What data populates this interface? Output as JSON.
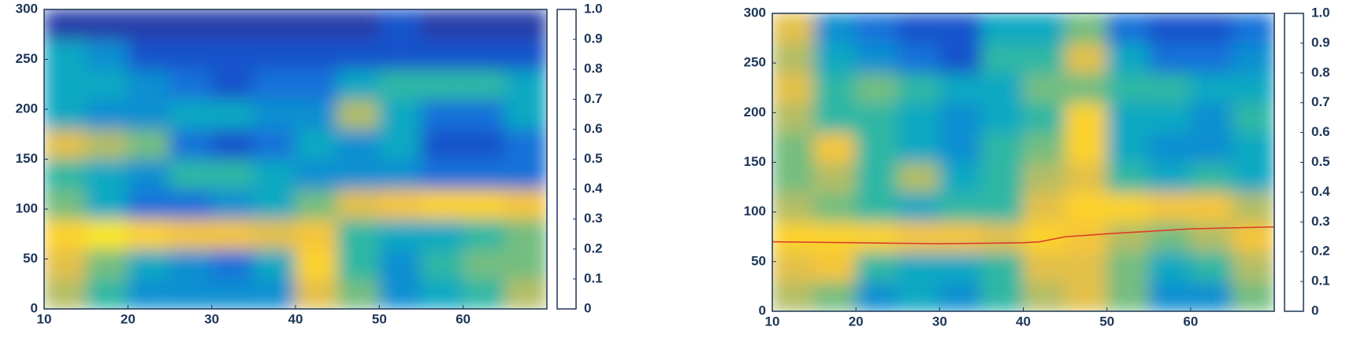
{
  "chart_data": [
    {
      "type": "heatmap",
      "xlim": [
        10,
        70
      ],
      "xticks": [
        10,
        20,
        30,
        40,
        50,
        60
      ],
      "ylim": [
        0,
        300
      ],
      "yticks": [
        0,
        50,
        100,
        150,
        200,
        250,
        300
      ],
      "clim": [
        0,
        1
      ],
      "cticks": [
        0,
        0.1,
        0.2,
        0.3,
        0.4,
        0.5,
        0.6,
        0.7,
        0.8,
        0.9,
        {
          "value": 1,
          "label": "1.0"
        }
      ],
      "colormap": [
        "#352a87",
        "#0f5cdd",
        "#1481d6",
        "#06a4ca",
        "#2eb7a4",
        "#87bf77",
        "#d1bb59",
        "#fec832",
        "#f9fb0e"
      ],
      "z": [
        [
          0.7,
          0.5,
          0.3,
          0.3,
          0.3,
          0.3,
          0.8,
          0.6,
          0.3,
          0.4,
          0.5,
          0.7
        ],
        [
          0.8,
          0.6,
          0.4,
          0.3,
          0.2,
          0.4,
          0.9,
          0.5,
          0.3,
          0.5,
          0.6,
          0.6
        ],
        [
          0.9,
          0.95,
          0.9,
          0.85,
          0.85,
          0.8,
          0.85,
          0.5,
          0.4,
          0.4,
          0.5,
          0.6
        ],
        [
          0.6,
          0.4,
          0.2,
          0.2,
          0.3,
          0.4,
          0.6,
          0.8,
          0.85,
          0.9,
          0.9,
          0.85
        ],
        [
          0.5,
          0.4,
          0.3,
          0.5,
          0.5,
          0.4,
          0.3,
          0.3,
          0.3,
          0.2,
          0.2,
          0.2
        ],
        [
          0.8,
          0.7,
          0.6,
          0.2,
          0.1,
          0.2,
          0.4,
          0.3,
          0.4,
          0.1,
          0.1,
          0.2
        ],
        [
          0.4,
          0.3,
          0.3,
          0.4,
          0.4,
          0.3,
          0.3,
          0.7,
          0.4,
          0.2,
          0.2,
          0.4
        ],
        [
          0.4,
          0.4,
          0.3,
          0.2,
          0.1,
          0.2,
          0.2,
          0.4,
          0.5,
          0.5,
          0.5,
          0.4
        ],
        [
          0.4,
          0.3,
          0.1,
          0.1,
          0.1,
          0.1,
          0.1,
          0.1,
          0.1,
          0.1,
          0.1,
          0.1
        ],
        [
          0.05,
          0.05,
          0.05,
          0.05,
          0.05,
          0.05,
          0.05,
          0.05,
          0.1,
          0.05,
          0.05,
          0.05
        ]
      ]
    },
    {
      "type": "heatmap",
      "xlim": [
        10,
        70
      ],
      "xticks": [
        10,
        20,
        30,
        40,
        50,
        60
      ],
      "ylim": [
        0,
        300
      ],
      "yticks": [
        0,
        50,
        100,
        150,
        200,
        250,
        300
      ],
      "clim": [
        0,
        1
      ],
      "cticks": [
        0,
        0.1,
        0.2,
        0.3,
        0.4,
        0.5,
        0.6,
        0.7,
        0.8,
        0.9,
        {
          "value": 1,
          "label": "1.0"
        }
      ],
      "colormap": [
        "#352a87",
        "#0f5cdd",
        "#1481d6",
        "#06a4ca",
        "#2eb7a4",
        "#87bf77",
        "#d1bb59",
        "#fec832",
        "#f9fb0e"
      ],
      "z": [
        [
          0.7,
          0.6,
          0.3,
          0.4,
          0.3,
          0.5,
          0.7,
          0.8,
          0.6,
          0.3,
          0.3,
          0.6
        ],
        [
          0.8,
          0.85,
          0.5,
          0.4,
          0.4,
          0.5,
          0.8,
          0.8,
          0.6,
          0.4,
          0.5,
          0.7
        ],
        [
          0.9,
          0.9,
          0.9,
          0.85,
          0.85,
          0.8,
          0.9,
          0.85,
          0.7,
          0.6,
          0.7,
          0.85
        ],
        [
          0.7,
          0.6,
          0.5,
          0.4,
          0.5,
          0.5,
          0.8,
          0.9,
          0.9,
          0.85,
          0.85,
          0.7
        ],
        [
          0.6,
          0.7,
          0.5,
          0.7,
          0.4,
          0.5,
          0.7,
          0.8,
          0.5,
          0.4,
          0.5,
          0.4
        ],
        [
          0.6,
          0.85,
          0.5,
          0.4,
          0.3,
          0.5,
          0.6,
          0.9,
          0.4,
          0.3,
          0.3,
          0.4
        ],
        [
          0.7,
          0.5,
          0.5,
          0.4,
          0.3,
          0.4,
          0.5,
          0.9,
          0.4,
          0.4,
          0.3,
          0.5
        ],
        [
          0.8,
          0.5,
          0.6,
          0.5,
          0.4,
          0.4,
          0.6,
          0.6,
          0.5,
          0.5,
          0.4,
          0.4
        ],
        [
          0.7,
          0.4,
          0.3,
          0.2,
          0.1,
          0.5,
          0.5,
          0.8,
          0.4,
          0.2,
          0.2,
          0.3
        ],
        [
          0.8,
          0.3,
          0.2,
          0.1,
          0.1,
          0.4,
          0.4,
          0.6,
          0.2,
          0.1,
          0.1,
          0.2
        ]
      ],
      "line": {
        "color": "#d9402a",
        "x": [
          10,
          20,
          30,
          40,
          42,
          45,
          50,
          60,
          70
        ],
        "y": [
          70,
          69,
          68,
          69,
          70,
          75,
          78,
          83,
          85
        ]
      }
    }
  ]
}
